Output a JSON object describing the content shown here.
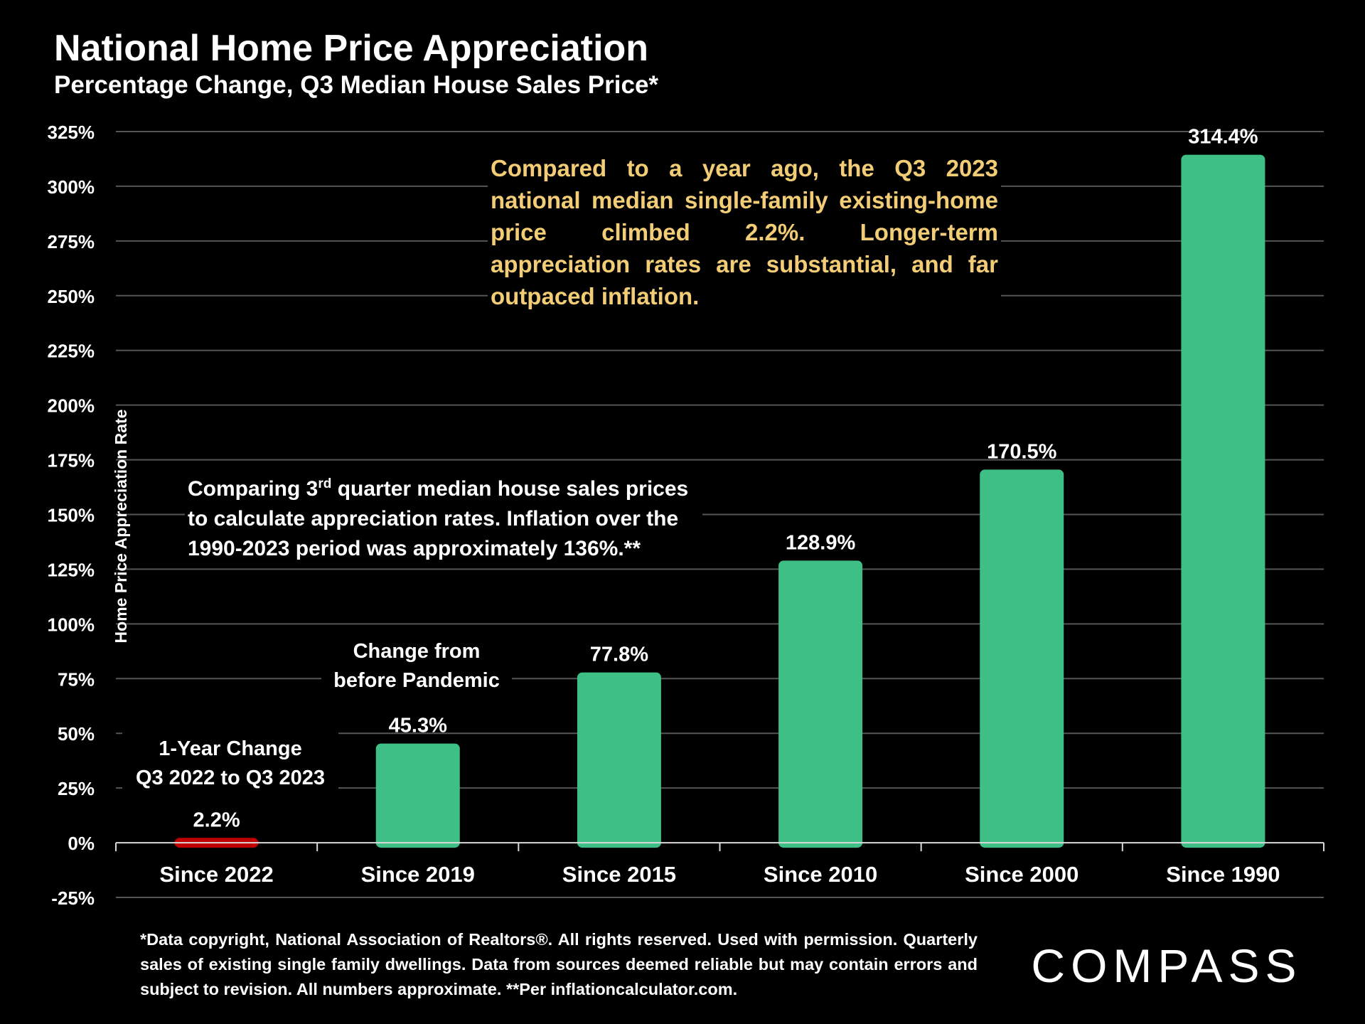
{
  "header": {
    "title": "National Home Price Appreciation",
    "subtitle": "Percentage Change, Q3 Median House Sales Price*"
  },
  "annotations": {
    "top_note": "Compared to a year ago, the Q3 2023 national median single-family existing-home price climbed 2.2%. Longer-term appreciation rates are substantial, and far outpaced inflation.",
    "mid_note_a": "Comparing 3",
    "mid_note_sup": "rd",
    "mid_note_b": " quarter median house sales prices to calculate appreciation rates. Inflation over the 1990-2023 period was approximately 136%.**",
    "one_year_line1": "1-Year Change",
    "one_year_line2": "Q3 2022 to Q3 2023",
    "pandemic_line1": "Change from",
    "pandemic_line2": "before  Pandemic"
  },
  "footnote": "*Data copyright, National Association of Realtors®. All rights reserved. Used with permission. Quarterly sales of existing single family dwellings. Data from sources deemed reliable but may contain errors and subject to revision. All numbers  approximate. **Per inflationcalculator.com.",
  "logo": {
    "text": "COMPASS"
  },
  "chart_data": {
    "type": "bar",
    "title": "National Home Price Appreciation",
    "subtitle": "Percentage Change, Q3 Median House Sales Price*",
    "ylabel": "Home Price Appreciation Rate",
    "xlabel": "",
    "categories": [
      "Since 2022",
      "Since 2019",
      "Since 2015",
      "Since 2010",
      "Since 2000",
      "Since 1990"
    ],
    "values": [
      2.2,
      45.3,
      77.8,
      128.9,
      170.5,
      314.4
    ],
    "data_labels": [
      "2.2%",
      "45.3%",
      "77.8%",
      "128.9%",
      "170.5%",
      "314.4%"
    ],
    "bar_colors": [
      "#c00000",
      "#3dbf86",
      "#3dbf86",
      "#3dbf86",
      "#3dbf86",
      "#3dbf86"
    ],
    "ylim": [
      -25,
      325
    ],
    "yticks": [
      -25,
      0,
      25,
      50,
      75,
      100,
      125,
      150,
      175,
      200,
      225,
      250,
      275,
      300,
      325
    ],
    "ytick_labels": [
      "-25%",
      "0%",
      "25%",
      "50%",
      "75%",
      "100%",
      "125%",
      "150%",
      "175%",
      "200%",
      "225%",
      "250%",
      "275%",
      "300%",
      "325%"
    ],
    "grid": true,
    "colors": {
      "background": "#000000",
      "highlight_text": "#f3cd76",
      "grid": "#555555"
    }
  }
}
